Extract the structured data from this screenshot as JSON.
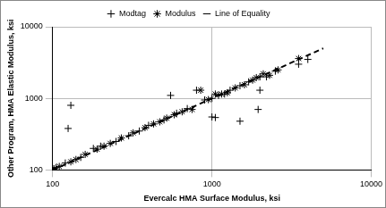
{
  "chart_data": {
    "type": "scatter",
    "x_label": "Evercalc HMA Surface Modulus, ksi",
    "y_label": "Other Program, HMA Elastic Modulus, ksi",
    "log": true,
    "grid": true,
    "legend": "top",
    "xlim": [
      100,
      10000
    ],
    "xticks": [
      100,
      1000,
      10000
    ],
    "ylim": [
      100,
      10000
    ],
    "yticks": [
      100,
      1000,
      10000
    ],
    "series": [
      {
        "name": "Modtag",
        "color": "#000000",
        "marker": "cross",
        "line_style": "none",
        "x": [
          100,
          105,
          120,
          125,
          130,
          150,
          180,
          200,
          250,
          300,
          350,
          400,
          500,
          550,
          600,
          700,
          800,
          900,
          1000,
          1000,
          1050,
          1100,
          1200,
          1300,
          1500,
          1500,
          1700,
          1950,
          2000,
          2000,
          2200,
          2500,
          3500,
          4000
        ],
        "values": [
          105,
          108,
          125,
          380,
          800,
          150,
          200,
          215,
          250,
          300,
          350,
          420,
          500,
          1100,
          620,
          720,
          1300,
          950,
          1000,
          550,
          540,
          1100,
          1150,
          1300,
          1500,
          480,
          1700,
          700,
          2000,
          1300,
          2000,
          2400,
          3000,
          3500
        ]
      },
      {
        "name": "Modulus",
        "color": "#000000",
        "marker": "star",
        "line_style": "none",
        "x": [
          102,
          110,
          130,
          140,
          160,
          190,
          210,
          230,
          270,
          320,
          380,
          430,
          470,
          520,
          580,
          650,
          750,
          850,
          950,
          1050,
          1150,
          1250,
          1400,
          1600,
          1800,
          1900,
          2100,
          2300,
          2600,
          3500
        ],
        "values": [
          104,
          112,
          130,
          140,
          165,
          195,
          215,
          235,
          280,
          330,
          390,
          440,
          470,
          530,
          590,
          650,
          700,
          1300,
          960,
          1150,
          1150,
          1200,
          1400,
          1550,
          1800,
          1950,
          2200,
          2100,
          2500,
          3600
        ]
      },
      {
        "name": "Line of Equality",
        "color": "#000000",
        "marker": "none",
        "line_style": "dashed",
        "x": [
          100,
          5000
        ],
        "values": [
          100,
          5000
        ]
      }
    ]
  }
}
